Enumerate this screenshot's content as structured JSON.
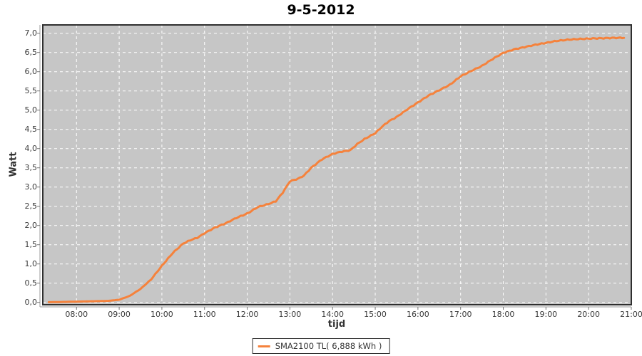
{
  "title": "9-5-2012",
  "y_axis": {
    "label": "Watt",
    "tick_labels": [
      "7,0",
      "6,5",
      "6,0",
      "5,5",
      "5,0",
      "4,5",
      "4,0",
      "3,5",
      "3,0",
      "2,5",
      "2,0",
      "1,5",
      "1,0",
      "0,5",
      "0,0"
    ]
  },
  "x_axis": {
    "label": "tijd",
    "tick_labels": [
      "08:00",
      "09:00",
      "10:00",
      "11:00",
      "12:00",
      "13:00",
      "14:00",
      "15:00",
      "16:00",
      "17:00",
      "18:00",
      "19:00",
      "20:00",
      "21:00"
    ]
  },
  "legend": {
    "label": "SMA2100 TL( 6,888 kWh )"
  },
  "colors": {
    "series": "#f5823c",
    "plot_background": "#c6c6c6",
    "gridline": "#ffffff",
    "plot_border": "#2f2f2f",
    "axis_line": "#999999",
    "tick_mark": "#777777",
    "text": "#3a3a3a"
  },
  "chart_data": {
    "type": "line",
    "title": "9-5-2012",
    "xlabel": "tijd",
    "ylabel": "Watt",
    "xlim_hours": [
      7.21,
      21.0
    ],
    "ylim": [
      0,
      7.28
    ],
    "x_tick_hours": [
      8,
      9,
      10,
      11,
      12,
      13,
      14,
      15,
      16,
      17,
      18,
      19,
      20,
      21
    ],
    "y_tick_values": [
      0,
      0.5,
      1,
      1.5,
      2,
      2.5,
      3,
      3.5,
      4,
      4.5,
      5,
      5.5,
      6,
      6.5,
      7
    ],
    "grid": true,
    "legend_position": "bottom",
    "series": [
      {
        "name": "SMA2100 TL( 6,888 kWh )",
        "color": "#f5823c",
        "points_time_hours_value": [
          [
            7.35,
            0.005
          ],
          [
            7.6,
            0.01
          ],
          [
            8.0,
            0.02
          ],
          [
            8.4,
            0.03
          ],
          [
            8.75,
            0.04
          ],
          [
            9.0,
            0.07
          ],
          [
            9.25,
            0.17
          ],
          [
            9.5,
            0.35
          ],
          [
            9.75,
            0.6
          ],
          [
            10.0,
            0.95
          ],
          [
            10.25,
            1.28
          ],
          [
            10.5,
            1.53
          ],
          [
            10.67,
            1.62
          ],
          [
            10.83,
            1.68
          ],
          [
            11.0,
            1.8
          ],
          [
            11.25,
            1.95
          ],
          [
            11.5,
            2.06
          ],
          [
            11.75,
            2.2
          ],
          [
            12.0,
            2.31
          ],
          [
            12.25,
            2.48
          ],
          [
            12.5,
            2.56
          ],
          [
            12.67,
            2.63
          ],
          [
            12.83,
            2.85
          ],
          [
            13.0,
            3.15
          ],
          [
            13.2,
            3.22
          ],
          [
            13.33,
            3.3
          ],
          [
            13.5,
            3.5
          ],
          [
            13.75,
            3.72
          ],
          [
            14.0,
            3.86
          ],
          [
            14.17,
            3.91
          ],
          [
            14.42,
            3.96
          ],
          [
            14.58,
            4.12
          ],
          [
            14.75,
            4.25
          ],
          [
            15.0,
            4.4
          ],
          [
            15.17,
            4.58
          ],
          [
            15.33,
            4.72
          ],
          [
            15.5,
            4.82
          ],
          [
            15.75,
            5.02
          ],
          [
            16.0,
            5.2
          ],
          [
            16.25,
            5.38
          ],
          [
            16.5,
            5.52
          ],
          [
            16.75,
            5.66
          ],
          [
            17.0,
            5.88
          ],
          [
            17.25,
            6.02
          ],
          [
            17.5,
            6.15
          ],
          [
            17.75,
            6.33
          ],
          [
            18.0,
            6.49
          ],
          [
            18.25,
            6.58
          ],
          [
            18.5,
            6.64
          ],
          [
            18.75,
            6.7
          ],
          [
            19.0,
            6.75
          ],
          [
            19.25,
            6.8
          ],
          [
            19.5,
            6.83
          ],
          [
            19.75,
            6.85
          ],
          [
            20.0,
            6.86
          ],
          [
            20.3,
            6.87
          ],
          [
            20.6,
            6.88
          ],
          [
            20.83,
            6.88
          ]
        ]
      }
    ]
  }
}
